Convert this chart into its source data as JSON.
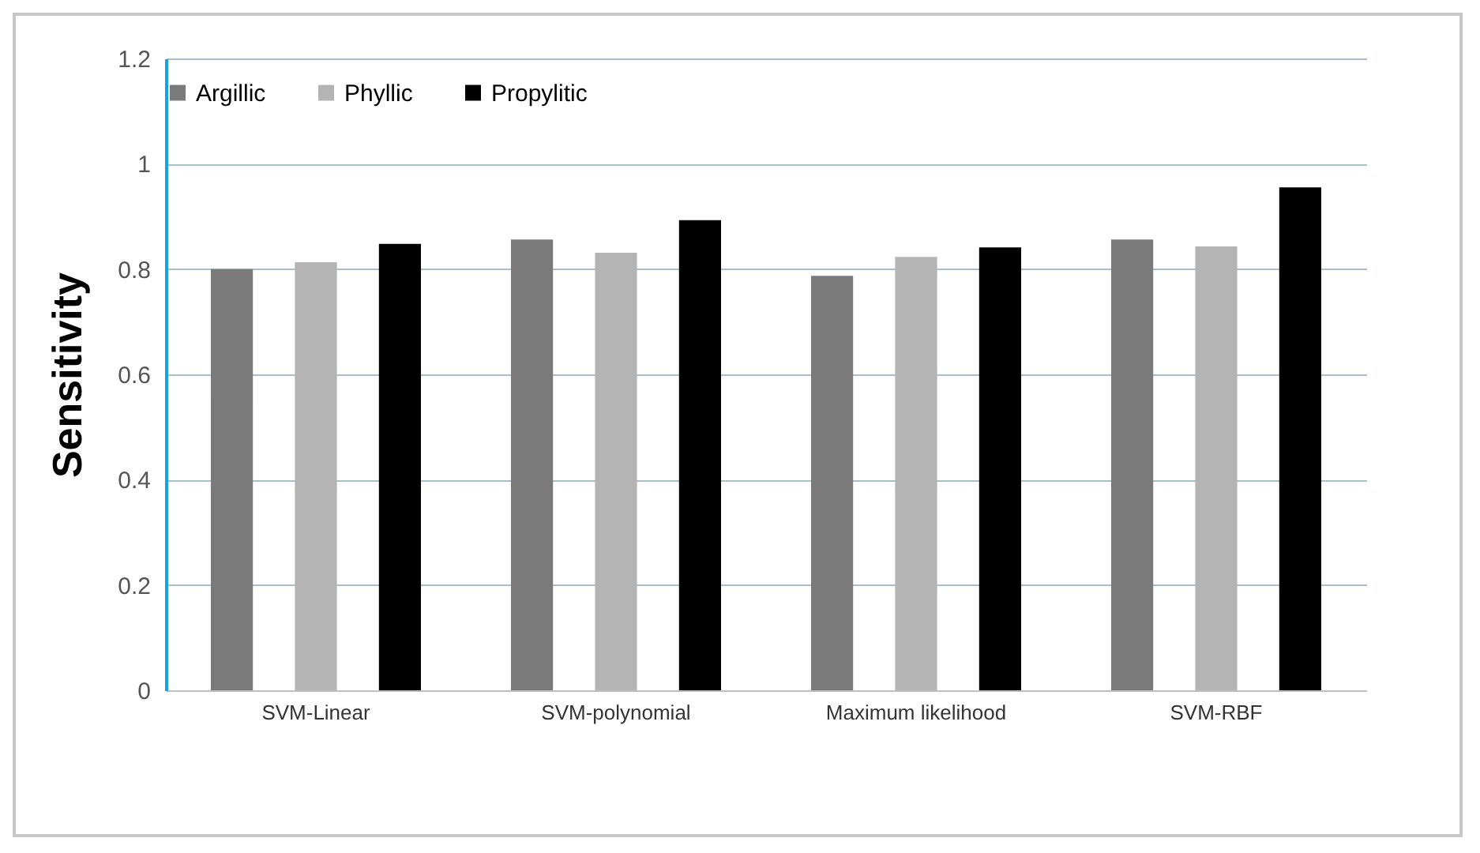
{
  "chart_data": {
    "type": "bar",
    "ylabel": "Sensitivity",
    "categories": [
      "SVM-Linear",
      "SVM-polynomial",
      "Maximum likelihood",
      "SVM-RBF"
    ],
    "series": [
      {
        "name": "Argillic",
        "color": "#7a7a7a",
        "values": [
          0.8,
          0.856,
          0.787,
          0.856
        ]
      },
      {
        "name": "Phyllic",
        "color": "#b4b4b4",
        "values": [
          0.813,
          0.831,
          0.823,
          0.843
        ]
      },
      {
        "name": "Propylitic",
        "color": "#000000",
        "values": [
          0.848,
          0.893,
          0.841,
          0.955
        ]
      }
    ],
    "ylim": [
      0,
      1.2
    ],
    "yticks": [
      0,
      0.2,
      0.4,
      0.6,
      0.8,
      1,
      1.2
    ],
    "grid": "y",
    "legend": "top"
  }
}
